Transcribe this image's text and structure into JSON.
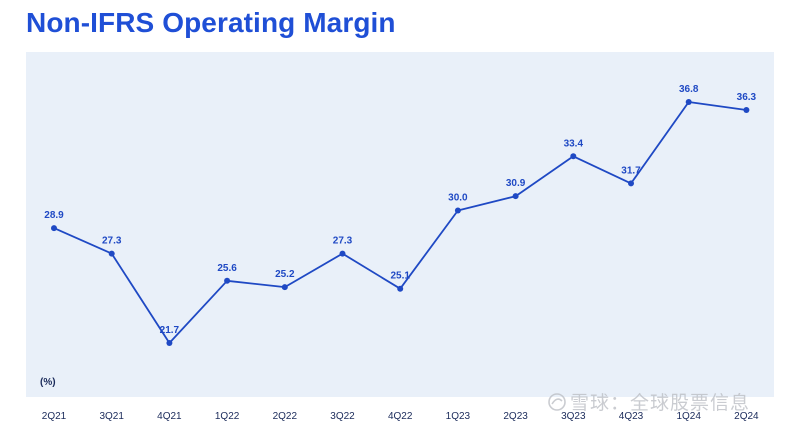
{
  "page": {
    "title": "Non-IFRS Operating Margin",
    "unit_label": "(%)",
    "watermark": "雪球：全球股票信息"
  },
  "colors": {
    "title": "#1f4fd6",
    "line": "#1f49c4",
    "panel_background": "#e9f0f9",
    "data_label": "#1f49c4",
    "axis_label": "#1a2a5a"
  },
  "chart_data": {
    "type": "line",
    "title": "Non-IFRS Operating Margin",
    "xlabel": "",
    "ylabel": "(%)",
    "categories": [
      "2Q21",
      "3Q21",
      "4Q21",
      "1Q22",
      "2Q22",
      "3Q22",
      "4Q22",
      "1Q23",
      "2Q23",
      "3Q23",
      "4Q23",
      "1Q24",
      "2Q24"
    ],
    "series": [
      {
        "values": [
          28.9,
          27.3,
          21.7,
          25.6,
          25.2,
          27.3,
          25.1,
          30.0,
          30.9,
          33.4,
          31.7,
          36.8,
          36.3
        ]
      }
    ],
    "data_labels": [
      "28.9",
      "27.3",
      "21.7",
      "25.6",
      "25.2",
      "27.3",
      "25.1",
      "30.0",
      "30.9",
      "33.4",
      "31.7",
      "36.8",
      "36.3"
    ],
    "ylim": [
      21.7,
      36.8
    ],
    "grid": false,
    "legend": "none"
  }
}
